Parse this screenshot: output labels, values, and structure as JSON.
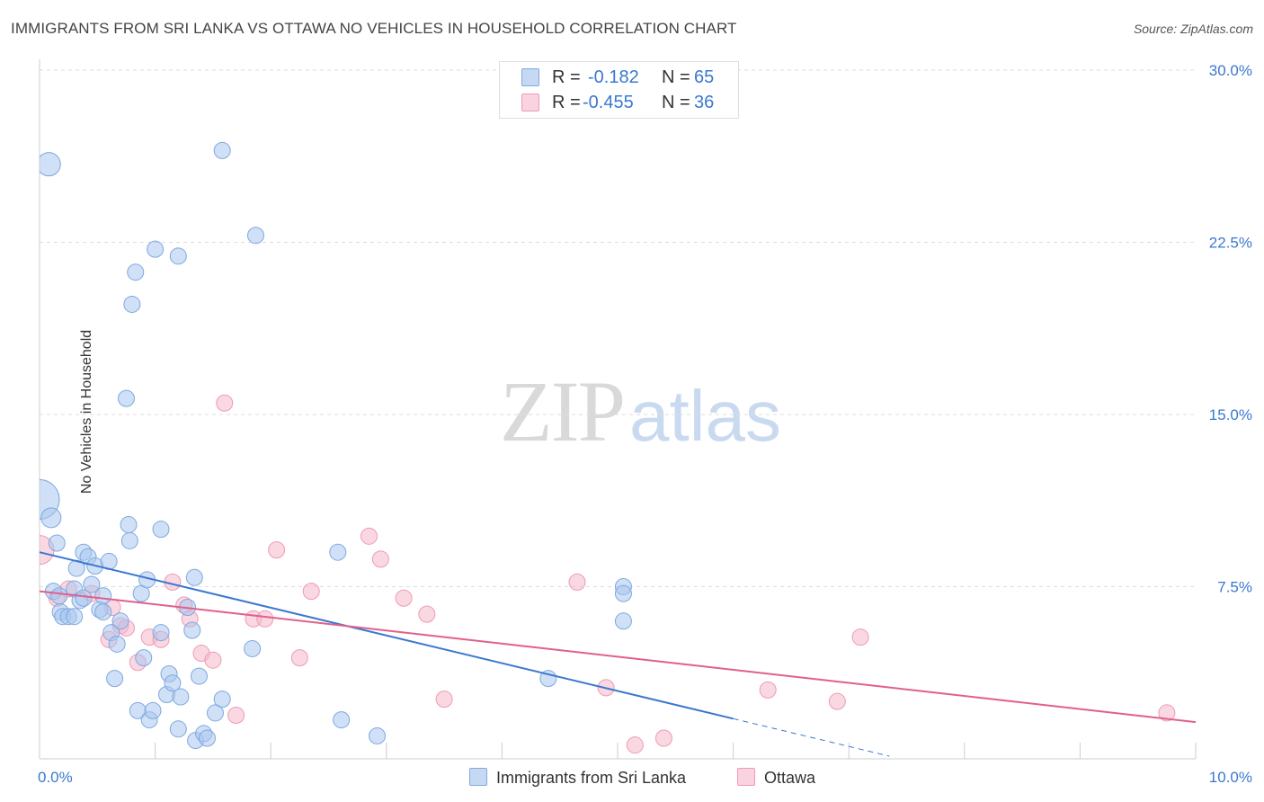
{
  "title": "IMMIGRANTS FROM SRI LANKA VS OTTAWA NO VEHICLES IN HOUSEHOLD CORRELATION CHART",
  "source": "Source: ZipAtlas.com",
  "watermark": {
    "zip": "ZIP",
    "atlas": "atlas"
  },
  "legend_top": {
    "rows": [
      {
        "r_label": "R =",
        "r_value": "-0.182",
        "n_label": "N =",
        "n_value": "65",
        "color": "#a9c7ee"
      },
      {
        "r_label": "R =",
        "r_value": "-0.455",
        "n_label": "N =",
        "n_value": "36",
        "color": "#f5b8cb"
      }
    ]
  },
  "legend_bottom": {
    "blue": "Immigrants from Sri Lanka",
    "pink": "Ottawa"
  },
  "chart_data": {
    "type": "scatter",
    "title": "IMMIGRANTS FROM SRI LANKA VS OTTAWA NO VEHICLES IN HOUSEHOLD CORRELATION CHART",
    "xlabel": "",
    "ylabel": "No Vehicles in Household",
    "xlim": [
      0,
      10
    ],
    "ylim": [
      0,
      30
    ],
    "x_tick_labels": [
      "0.0%",
      "10.0%"
    ],
    "y_ticks": [
      7.5,
      15.0,
      22.5,
      30.0
    ],
    "y_tick_labels": [
      "7.5%",
      "15.0%",
      "22.5%",
      "30.0%"
    ],
    "grid": "horizontal dashed",
    "legend": "top-center",
    "colors": {
      "blue": "#3b78d0",
      "blue_fill": "#a9c7ee",
      "pink": "#e0608c",
      "pink_fill": "#f5b8cb",
      "tick_label": "#3b78d0"
    },
    "series": [
      {
        "name": "Immigrants from Sri Lanka",
        "color": "#3b78d0",
        "trend": {
          "x0": 0.0,
          "y0": 9.0,
          "x1": 6.0,
          "y1": 1.75,
          "dashed_to_x": 7.35
        },
        "points": [
          [
            0.0,
            11.3,
            22
          ],
          [
            0.08,
            25.9,
            13
          ],
          [
            0.1,
            10.5,
            11
          ],
          [
            0.15,
            9.4,
            9
          ],
          [
            0.12,
            7.3,
            9
          ],
          [
            0.17,
            7.1,
            9
          ],
          [
            0.18,
            6.4,
            9
          ],
          [
            0.2,
            6.2,
            9
          ],
          [
            0.25,
            6.2,
            9
          ],
          [
            0.3,
            7.4,
            9
          ],
          [
            0.3,
            6.2,
            9
          ],
          [
            0.32,
            8.3,
            9
          ],
          [
            0.35,
            6.9,
            9
          ],
          [
            0.38,
            9.0,
            9
          ],
          [
            0.38,
            7.0,
            9
          ],
          [
            0.42,
            8.8,
            9
          ],
          [
            0.45,
            7.6,
            9
          ],
          [
            0.48,
            8.4,
            9
          ],
          [
            0.52,
            6.5,
            9
          ],
          [
            0.55,
            6.4,
            9
          ],
          [
            0.55,
            7.1,
            9
          ],
          [
            0.6,
            8.6,
            9
          ],
          [
            0.62,
            5.5,
            9
          ],
          [
            0.65,
            3.5,
            9
          ],
          [
            0.67,
            5.0,
            9
          ],
          [
            0.7,
            6.0,
            9
          ],
          [
            0.75,
            15.7,
            9
          ],
          [
            0.77,
            10.2,
            9
          ],
          [
            0.78,
            9.5,
            9
          ],
          [
            0.8,
            19.8,
            9
          ],
          [
            0.83,
            21.2,
            9
          ],
          [
            0.85,
            2.1,
            9
          ],
          [
            0.88,
            7.2,
            9
          ],
          [
            0.9,
            4.4,
            9
          ],
          [
            0.93,
            7.8,
            9
          ],
          [
            0.95,
            1.7,
            9
          ],
          [
            0.98,
            2.1,
            9
          ],
          [
            1.0,
            22.2,
            9
          ],
          [
            1.05,
            10.0,
            9
          ],
          [
            1.05,
            5.5,
            9
          ],
          [
            1.1,
            2.8,
            9
          ],
          [
            1.12,
            3.7,
            9
          ],
          [
            1.15,
            3.3,
            9
          ],
          [
            1.2,
            21.9,
            9
          ],
          [
            1.2,
            1.3,
            9
          ],
          [
            1.22,
            2.7,
            9
          ],
          [
            1.28,
            6.6,
            9
          ],
          [
            1.32,
            5.6,
            9
          ],
          [
            1.34,
            7.9,
            9
          ],
          [
            1.35,
            0.8,
            9
          ],
          [
            1.38,
            3.6,
            9
          ],
          [
            1.42,
            1.1,
            9
          ],
          [
            1.45,
            0.9,
            9
          ],
          [
            1.52,
            2.0,
            9
          ],
          [
            1.58,
            26.5,
            9
          ],
          [
            1.58,
            2.6,
            9
          ],
          [
            1.84,
            4.8,
            9
          ],
          [
            1.87,
            22.8,
            9
          ],
          [
            2.58,
            9.0,
            9
          ],
          [
            2.61,
            1.7,
            9
          ],
          [
            2.92,
            1.0,
            9
          ],
          [
            4.4,
            3.5,
            9
          ],
          [
            5.05,
            7.5,
            9
          ],
          [
            5.05,
            7.2,
            9
          ],
          [
            5.05,
            6.0,
            9
          ]
        ]
      },
      {
        "name": "Ottawa",
        "color": "#e0608c",
        "trend": {
          "x0": 0.0,
          "y0": 7.3,
          "x1": 10.0,
          "y1": 1.6
        },
        "points": [
          [
            0.0,
            9.1,
            16
          ],
          [
            0.15,
            7.0,
            9
          ],
          [
            0.25,
            7.4,
            9
          ],
          [
            0.45,
            7.2,
            9
          ],
          [
            0.6,
            5.2,
            9
          ],
          [
            0.63,
            6.6,
            9
          ],
          [
            0.7,
            5.8,
            9
          ],
          [
            0.75,
            5.7,
            9
          ],
          [
            0.85,
            4.2,
            9
          ],
          [
            0.95,
            5.3,
            9
          ],
          [
            1.05,
            5.2,
            9
          ],
          [
            1.15,
            7.7,
            9
          ],
          [
            1.25,
            6.7,
            9
          ],
          [
            1.3,
            6.1,
            9
          ],
          [
            1.4,
            4.6,
            9
          ],
          [
            1.5,
            4.3,
            9
          ],
          [
            1.6,
            15.5,
            9
          ],
          [
            1.7,
            1.9,
            9
          ],
          [
            1.85,
            6.1,
            9
          ],
          [
            1.95,
            6.1,
            9
          ],
          [
            2.05,
            9.1,
            9
          ],
          [
            2.25,
            4.4,
            9
          ],
          [
            2.35,
            7.3,
            9
          ],
          [
            2.85,
            9.7,
            9
          ],
          [
            2.95,
            8.7,
            9
          ],
          [
            3.15,
            7.0,
            9
          ],
          [
            3.35,
            6.3,
            9
          ],
          [
            3.5,
            2.6,
            9
          ],
          [
            4.65,
            7.7,
            9
          ],
          [
            4.9,
            3.1,
            9
          ],
          [
            5.15,
            0.6,
            9
          ],
          [
            5.4,
            0.9,
            9
          ],
          [
            6.3,
            3.0,
            9
          ],
          [
            6.9,
            2.5,
            9
          ],
          [
            7.1,
            5.3,
            9
          ],
          [
            9.75,
            2.0,
            9
          ]
        ]
      }
    ]
  }
}
